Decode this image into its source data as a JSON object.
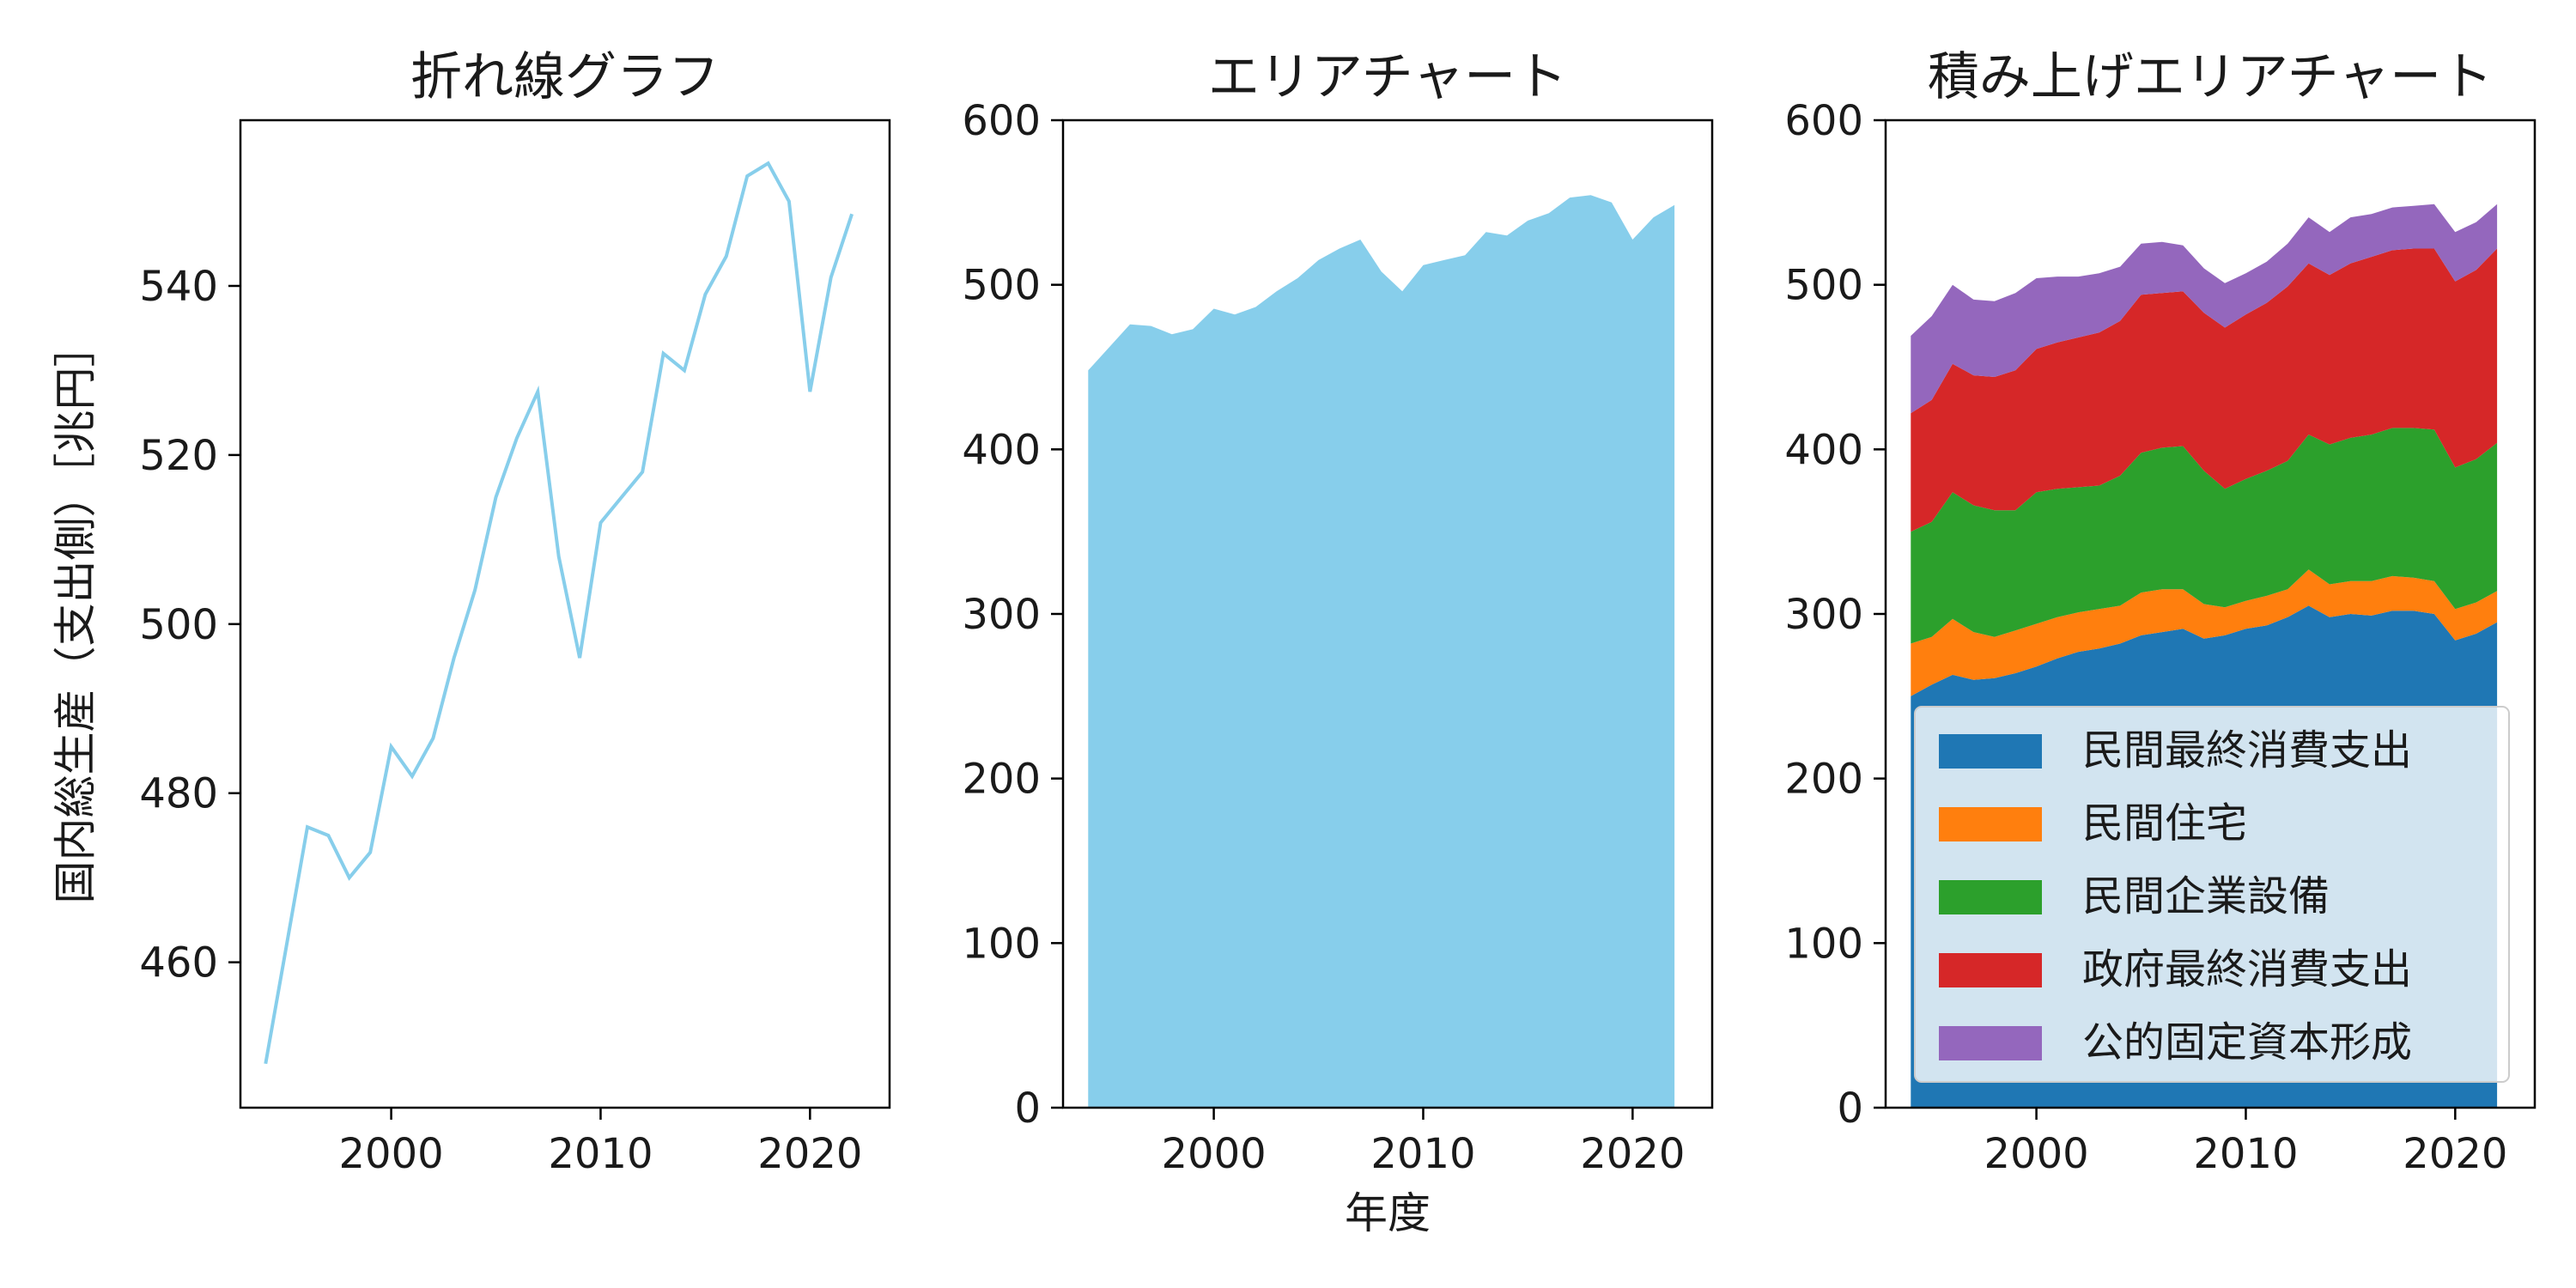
{
  "figure": {
    "shared_xlabel": "年度",
    "shared_ylabel": "国内総生産（支出側）［兆円］"
  },
  "chart_data": [
    {
      "type": "line",
      "title": "折れ線グラフ",
      "xlabel": "",
      "ylabel": "国内総生産（支出側）［兆円］",
      "xlim": [
        1992.8,
        2023.8
      ],
      "ylim": [
        442.8,
        559.6
      ],
      "xticks": [
        2000,
        2010,
        2020
      ],
      "yticks": [
        460,
        480,
        500,
        520,
        540
      ],
      "color": "#87ceeb",
      "x": [
        1994,
        1995,
        1996,
        1997,
        1998,
        1999,
        2000,
        2001,
        2002,
        2003,
        2004,
        2005,
        2006,
        2007,
        2008,
        2009,
        2010,
        2011,
        2012,
        2013,
        2014,
        2015,
        2016,
        2017,
        2018,
        2019,
        2020,
        2021,
        2022
      ],
      "y": [
        448,
        462,
        476,
        475,
        470,
        473,
        485.5,
        482,
        486.5,
        496,
        504,
        515,
        522,
        527.5,
        508,
        496,
        512,
        515,
        518,
        532,
        530,
        539,
        543.5,
        553,
        554.5,
        550,
        527.5,
        541,
        548.5
      ]
    },
    {
      "type": "area",
      "title": "エリアチャート",
      "xlabel": "年度",
      "ylabel": "",
      "xlim": [
        1992.8,
        2023.8
      ],
      "ylim": [
        0,
        600
      ],
      "xticks": [
        2000,
        2010,
        2020
      ],
      "yticks": [
        0,
        100,
        200,
        300,
        400,
        500,
        600
      ],
      "color": "#87ceeb",
      "x": [
        1994,
        1995,
        1996,
        1997,
        1998,
        1999,
        2000,
        2001,
        2002,
        2003,
        2004,
        2005,
        2006,
        2007,
        2008,
        2009,
        2010,
        2011,
        2012,
        2013,
        2014,
        2015,
        2016,
        2017,
        2018,
        2019,
        2020,
        2021,
        2022
      ],
      "y": [
        448,
        462,
        476,
        475,
        470,
        473,
        485.5,
        482,
        486.5,
        496,
        504,
        515,
        522,
        527.5,
        508,
        496,
        512,
        515,
        518,
        532,
        530,
        539,
        543.5,
        553,
        554.5,
        550,
        527.5,
        541,
        548.5
      ]
    },
    {
      "type": "area",
      "stacked": true,
      "title": "積み上げエリアチャート",
      "xlabel": "",
      "ylabel": "",
      "xlim": [
        1992.8,
        2023.8
      ],
      "ylim": [
        0,
        600
      ],
      "xticks": [
        2000,
        2010,
        2020
      ],
      "yticks": [
        0,
        100,
        200,
        300,
        400,
        500,
        600
      ],
      "legend_position": "lower-right",
      "x": [
        1994,
        1995,
        1996,
        1997,
        1998,
        1999,
        2000,
        2001,
        2002,
        2003,
        2004,
        2005,
        2006,
        2007,
        2008,
        2009,
        2010,
        2011,
        2012,
        2013,
        2014,
        2015,
        2016,
        2017,
        2018,
        2019,
        2020,
        2021,
        2022
      ],
      "series": [
        {
          "name": "民間最終消費支出",
          "color": "#1f77b4",
          "values": [
            250,
            257,
            263,
            260,
            261,
            264,
            268,
            273,
            277,
            279,
            282,
            287,
            289,
            291,
            285,
            287,
            291,
            293,
            298,
            305,
            298,
            300,
            299,
            302,
            302,
            300,
            284,
            288,
            295
          ]
        },
        {
          "name": "民間住宅",
          "color": "#ff7f0e",
          "values": [
            32,
            29,
            34,
            29,
            25,
            26,
            26,
            25,
            24,
            24,
            23,
            26,
            26,
            24,
            21,
            17,
            17,
            18,
            17,
            22,
            20,
            20,
            21,
            21,
            20,
            20,
            19,
            19,
            19
          ]
        },
        {
          "name": "民間企業設備",
          "color": "#2ca02c",
          "values": [
            68,
            70,
            77,
            77,
            77,
            73,
            80,
            78,
            76,
            75,
            79,
            85,
            86,
            87,
            81,
            72,
            74,
            76,
            78,
            82,
            85,
            87,
            89,
            90,
            91,
            92,
            86,
            87,
            90
          ]
        },
        {
          "name": "政府最終消費支出",
          "color": "#d62728",
          "values": [
            72,
            74,
            78,
            79,
            81,
            85,
            87,
            89,
            91,
            93,
            94,
            96,
            94,
            94,
            96,
            98,
            100,
            102,
            106,
            104,
            103,
            106,
            108,
            108,
            109,
            110,
            113,
            115,
            118
          ]
        },
        {
          "name": "公的固定資本形成",
          "color": "#9467bd",
          "values": [
            47,
            51,
            48,
            46,
            46,
            47,
            43,
            40,
            37,
            36,
            33,
            31,
            31,
            28,
            27,
            27,
            25,
            25,
            26,
            28,
            26,
            28,
            26,
            26,
            26,
            27,
            30,
            29,
            27
          ]
        }
      ]
    }
  ]
}
